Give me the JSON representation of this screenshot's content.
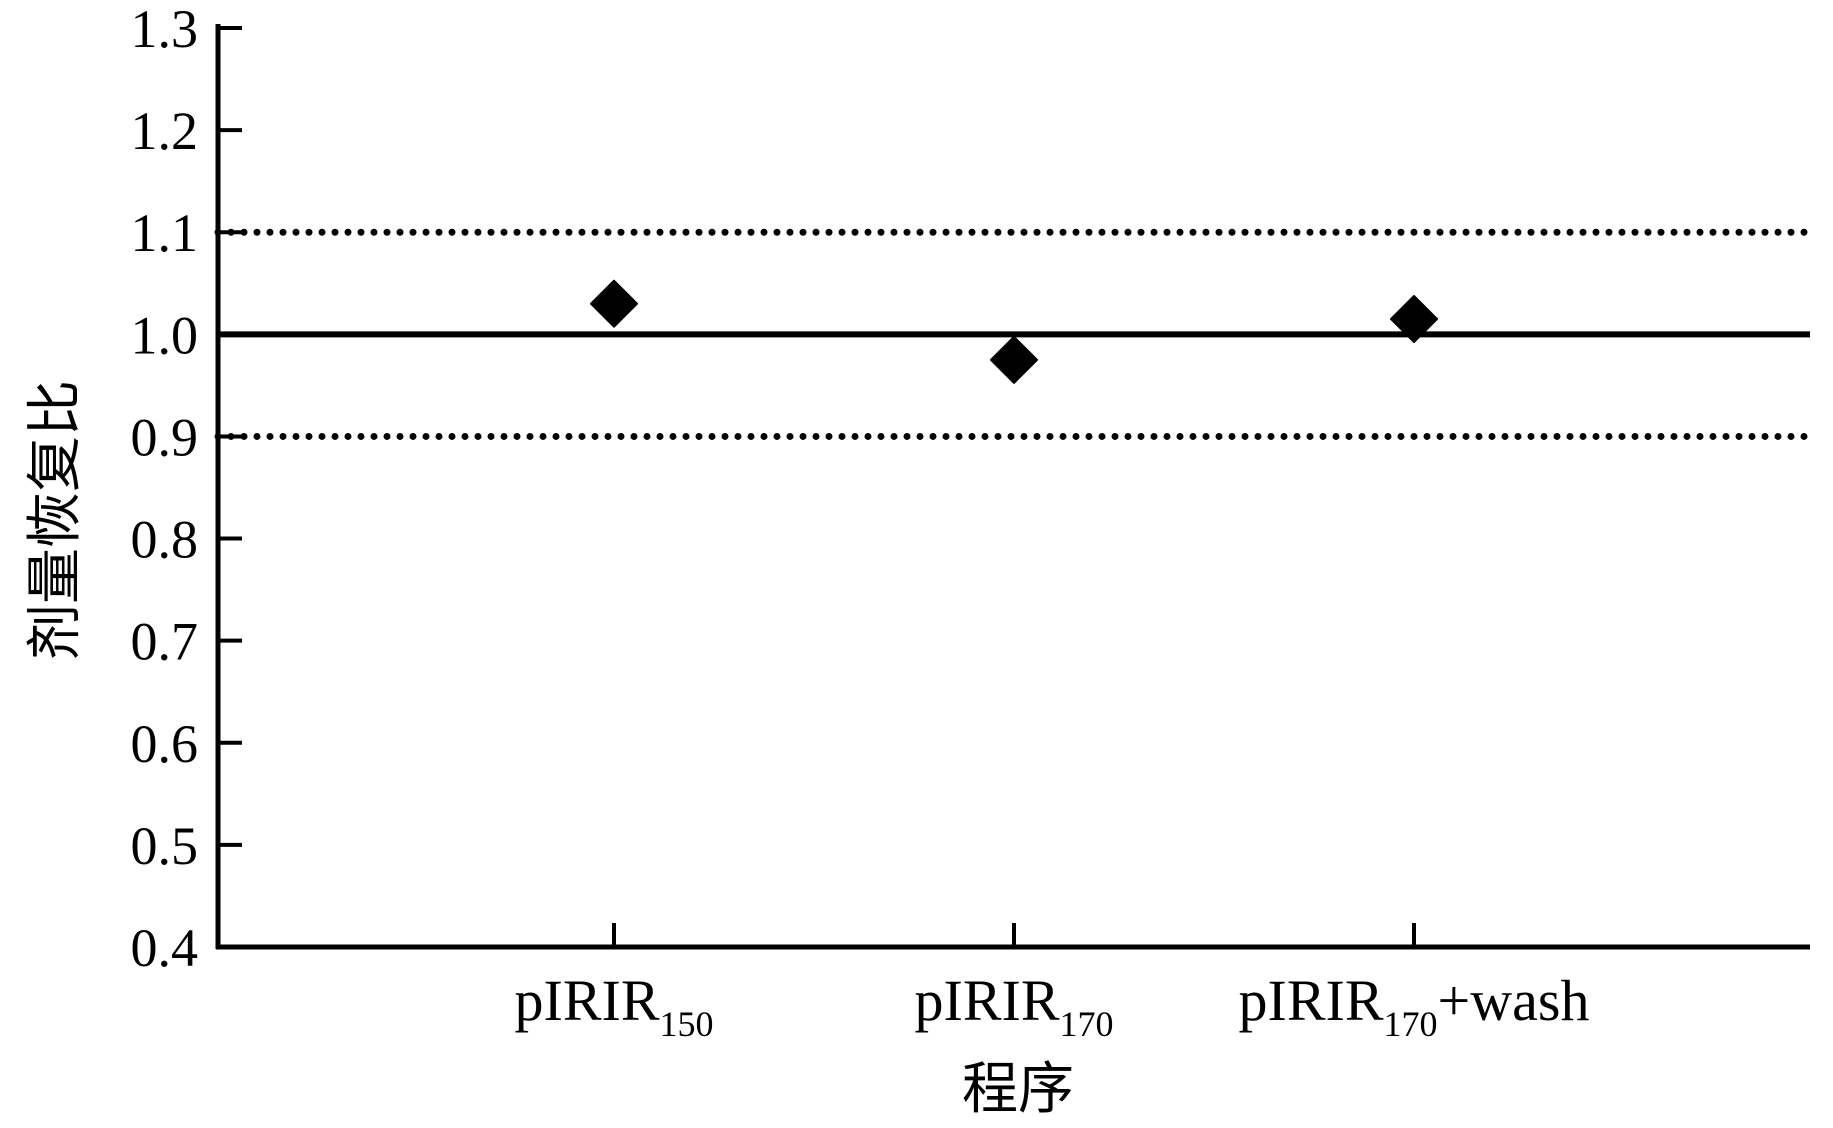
{
  "chart_data": {
    "type": "scatter",
    "title": "",
    "xlabel": "程序",
    "ylabel": "剂量恢复比",
    "ylim": [
      0.4,
      1.3
    ],
    "yticks": [
      "0.4",
      "0.5",
      "0.6",
      "0.7",
      "0.8",
      "0.9",
      "1.0",
      "1.1",
      "1.2",
      "1.3"
    ],
    "categories": [
      {
        "main": "pIRIR",
        "sub": "150",
        "suffix": ""
      },
      {
        "main": "pIRIR",
        "sub": "170",
        "suffix": ""
      },
      {
        "main": "pIRIR",
        "sub": "170",
        "suffix": "+wash"
      }
    ],
    "series": [
      {
        "values": [
          1.03,
          0.975,
          1.015
        ],
        "marker": "diamond",
        "color": "#000000"
      }
    ],
    "reference_lines": [
      {
        "y": 1.0,
        "style": "solid"
      },
      {
        "y": 1.1,
        "style": "dotted"
      },
      {
        "y": 0.9,
        "style": "dotted"
      }
    ],
    "grid": false,
    "legend": "none"
  }
}
